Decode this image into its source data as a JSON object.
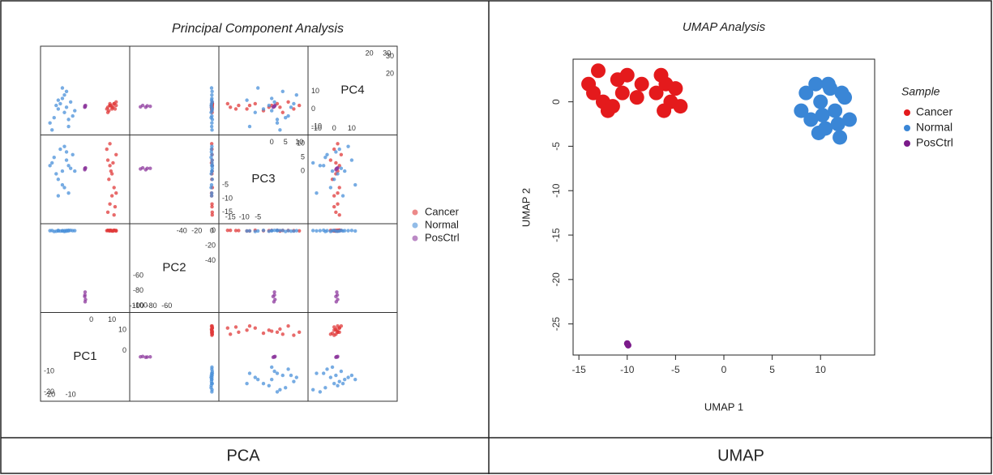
{
  "captions": [
    "PCA",
    "UMAP"
  ],
  "chart_data": [
    {
      "type": "scatter_matrix",
      "title": "Principal Component Analysis",
      "dimensions": [
        {
          "name": "PC1",
          "lim": [
            -23,
            17
          ],
          "ticks": [
            -20,
            -10,
            0,
            10
          ]
        },
        {
          "name": "PC2",
          "lim": [
            -105,
            5
          ],
          "ticks": [
            -100,
            -80,
            -60,
            -40,
            -20,
            0
          ]
        },
        {
          "name": "PC3",
          "lim": [
            -18,
            12
          ],
          "ticks": [
            -15,
            -10,
            -5,
            0,
            5,
            10
          ]
        },
        {
          "name": "PC4",
          "lim": [
            -13,
            34
          ],
          "ticks": [
            -10,
            0,
            10,
            20,
            30
          ]
        }
      ],
      "series": [
        {
          "name": "Cancer",
          "color": "#e03a3a",
          "values": [
            [
              8,
              0.5,
              -15,
              1
            ],
            [
              9,
              0.2,
              -12,
              2
            ],
            [
              10,
              -0.3,
              -9,
              0
            ],
            [
              11,
              0.6,
              -6,
              3
            ],
            [
              8.5,
              0,
              -3,
              -1
            ],
            [
              9.5,
              0.4,
              0,
              2
            ],
            [
              10.5,
              -0.5,
              3,
              1
            ],
            [
              12,
              0.3,
              6,
              4
            ],
            [
              7.5,
              0.1,
              8,
              0
            ],
            [
              9,
              -0.2,
              10,
              2
            ],
            [
              11,
              0.5,
              -16,
              3
            ],
            [
              10,
              0,
              -1,
              1
            ],
            [
              8,
              0.3,
              4,
              -2
            ],
            [
              12,
              -0.4,
              -8,
              2
            ],
            [
              9,
              0.6,
              2,
              3
            ],
            [
              11.5,
              0.2,
              -13,
              0
            ]
          ]
        },
        {
          "name": "Normal",
          "color": "#4a90d9",
          "values": [
            [
              -20,
              0,
              2,
              -8
            ],
            [
              -18,
              -1,
              5,
              -5
            ],
            [
              -16,
              0.5,
              -3,
              0
            ],
            [
              -15,
              -0.5,
              8,
              3
            ],
            [
              -14,
              0,
              0,
              6
            ],
            [
              -13,
              -1,
              -6,
              -2
            ],
            [
              -12,
              0.3,
              4,
              10
            ],
            [
              -11,
              -0.2,
              -8,
              -10
            ],
            [
              -10,
              0.5,
              1,
              4
            ],
            [
              -9,
              0,
              6,
              -4
            ],
            [
              -17,
              -0.8,
              -1,
              2
            ],
            [
              -19,
              0.2,
              3,
              -12
            ],
            [
              -13,
              0,
              9,
              8
            ],
            [
              -14,
              -0.4,
              -5,
              12
            ],
            [
              -11,
              0.6,
              2,
              -6
            ],
            [
              -16,
              -0.3,
              -9,
              5
            ],
            [
              -8,
              0.1,
              0,
              -1
            ],
            [
              -12,
              -0.6,
              7,
              1
            ]
          ]
        },
        {
          "name": "PosCtrl",
          "color": "#8e3a9e",
          "values": [
            [
              -3,
              -82,
              1,
              1.5
            ],
            [
              -3.2,
              -88,
              0.5,
              1
            ],
            [
              -2.8,
              -92,
              1.2,
              2
            ],
            [
              -3,
              -95,
              0.8,
              1.2
            ],
            [
              -3.1,
              -86,
              1,
              1.8
            ]
          ]
        }
      ]
    },
    {
      "type": "scatter",
      "title": "UMAP Analysis",
      "x_label": "UMAP 1",
      "y_label": "UMAP 2",
      "legend_title": "Sample",
      "xlim": [
        -15.6,
        15.6
      ],
      "ylim": [
        -28.5,
        4.8
      ],
      "xticks": [
        -15,
        -10,
        -5,
        0,
        5,
        10
      ],
      "yticks": [
        -25,
        -20,
        -15,
        -10,
        -5,
        0
      ],
      "series": [
        {
          "name": "Cancer",
          "color": "#e41a1c",
          "x": [
            -14,
            -13,
            -12.5,
            -12,
            -11,
            -10.5,
            -10,
            -9,
            -8.5,
            -13.5,
            -11.5,
            -7,
            -6.5,
            -6,
            -5.5,
            -5,
            -4.5,
            -6.2
          ],
          "values": [
            2,
            3.5,
            0,
            -1,
            2.5,
            1,
            3,
            0.5,
            2,
            1,
            -0.5,
            1,
            3,
            2,
            0,
            1.5,
            -0.5,
            -1
          ]
        },
        {
          "name": "Normal",
          "color": "#3a86d6",
          "x": [
            8,
            8.5,
            9,
            9.5,
            10,
            10.5,
            11,
            11.5,
            12,
            12.5,
            13,
            9.8,
            10.8,
            11.8,
            12.2,
            10.2
          ],
          "values": [
            -1,
            1,
            -2,
            2,
            0,
            -3,
            1.5,
            -1,
            -4,
            0.5,
            -2,
            -3.5,
            2,
            -2.5,
            1,
            -1.5
          ]
        },
        {
          "name": "PosCtrl",
          "color": "#7b1a8a",
          "x": [
            -10,
            -9.9
          ],
          "values": [
            -27.2,
            -27.4
          ]
        }
      ]
    }
  ]
}
